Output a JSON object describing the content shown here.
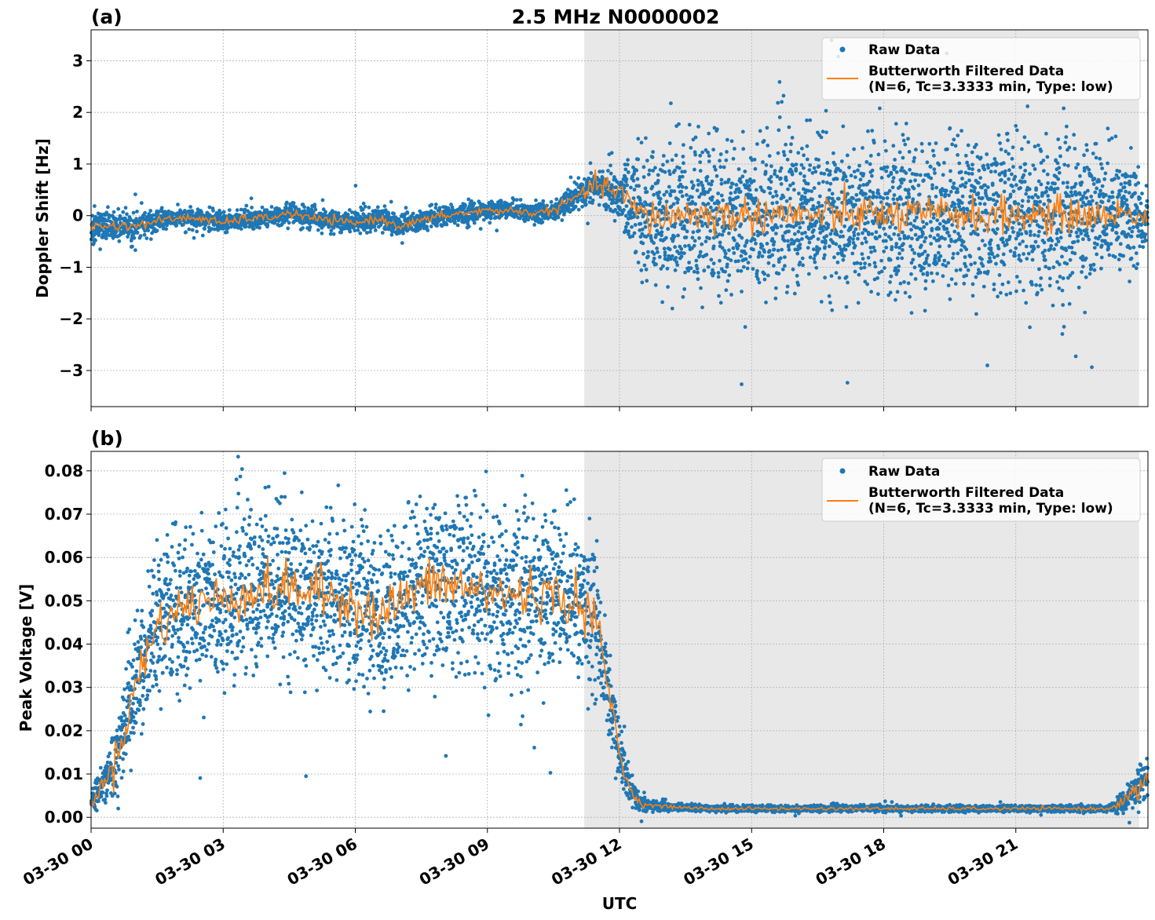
{
  "figure": {
    "title": "2.5 MHz N0000002",
    "xlabel": "UTC"
  },
  "colors": {
    "raw": "#1f77b4",
    "filtered": "#ff7f0e",
    "shade": "#e8e8e8",
    "grid": "#b0b0b0"
  },
  "chart_data": [
    {
      "type": "scatter",
      "panel_label": "(a)",
      "title": "2.5 MHz N0000002",
      "xlabel": "",
      "ylabel": "Doppler Shift [Hz]",
      "x_unit": "hours UTC on 03-30",
      "xlim": [
        0,
        24
      ],
      "ylim": [
        -3.7,
        3.6
      ],
      "xticks": [
        0,
        3,
        6,
        9,
        12,
        15,
        18,
        21
      ],
      "xtick_labels": [],
      "yticks": [
        -3,
        -2,
        -1,
        0,
        1,
        2,
        3
      ],
      "ytick_labels": [
        "−3",
        "−2",
        "−1",
        "0",
        "1",
        "2",
        "3"
      ],
      "grid": true,
      "legend_position": "top-right",
      "shaded_region": [
        11.2,
        23.8
      ],
      "series": [
        {
          "name": "Raw Data",
          "kind": "scatter",
          "x": [
            0,
            0.5,
            1,
            1.5,
            2,
            2.5,
            3,
            3.5,
            4,
            4.5,
            5,
            5.5,
            6,
            6.5,
            7,
            7.5,
            8,
            8.5,
            9,
            9.5,
            10,
            10.5,
            11,
            11.5,
            12,
            12.5,
            13,
            13.5,
            14,
            14.5,
            15,
            15.5,
            16,
            16.5,
            17,
            17.5,
            18,
            18.5,
            19,
            19.5,
            20,
            20.5,
            21,
            21.5,
            22,
            22.5,
            23,
            23.5,
            24
          ],
          "center": [
            -0.25,
            -0.2,
            -0.2,
            -0.1,
            -0.05,
            -0.05,
            -0.15,
            -0.05,
            -0.05,
            0.05,
            -0.05,
            -0.1,
            -0.15,
            -0.05,
            -0.2,
            -0.1,
            0.0,
            0.05,
            0.1,
            0.1,
            0.05,
            0.1,
            0.35,
            0.6,
            0.4,
            0.0,
            -0.05,
            0.05,
            0.0,
            0.0,
            0.0,
            0.05,
            0.0,
            0.0,
            0.0,
            0.05,
            0.0,
            0.0,
            0.0,
            0.05,
            0.0,
            0.0,
            0.0,
            0.0,
            0.0,
            0.0,
            0.0,
            0.05,
            -0.05
          ],
          "spread": [
            0.45,
            0.3,
            0.25,
            0.2,
            0.2,
            0.2,
            0.2,
            0.2,
            0.2,
            0.2,
            0.25,
            0.2,
            0.25,
            0.2,
            0.25,
            0.2,
            0.2,
            0.2,
            0.2,
            0.2,
            0.2,
            0.2,
            0.3,
            0.35,
            0.5,
            1.4,
            1.5,
            1.6,
            1.6,
            1.6,
            1.6,
            1.6,
            1.6,
            1.6,
            1.6,
            1.6,
            1.6,
            1.6,
            1.6,
            1.6,
            1.6,
            1.6,
            1.6,
            1.6,
            1.6,
            1.6,
            1.4,
            1.2,
            0.7
          ]
        },
        {
          "name": "Butterworth Filtered Data\n(N=6, Tc=3.3333 min, Type: low)",
          "kind": "line",
          "x": [
            0,
            0.5,
            1,
            1.5,
            2,
            2.5,
            3,
            3.5,
            4,
            4.5,
            5,
            5.5,
            6,
            6.5,
            7,
            7.5,
            8,
            8.5,
            9,
            9.5,
            10,
            10.5,
            11,
            11.5,
            12,
            12.5,
            13,
            13.5,
            14,
            14.5,
            15,
            15.5,
            16,
            16.5,
            17,
            17.5,
            18,
            18.5,
            19,
            19.5,
            20,
            20.5,
            21,
            21.5,
            22,
            22.5,
            23,
            23.5,
            24
          ],
          "y": [
            -0.2,
            -0.2,
            -0.2,
            -0.1,
            -0.05,
            -0.05,
            -0.15,
            -0.05,
            -0.05,
            0.05,
            -0.05,
            -0.1,
            -0.15,
            -0.05,
            -0.2,
            -0.1,
            0.0,
            0.05,
            0.1,
            0.1,
            0.05,
            0.1,
            0.35,
            0.6,
            0.45,
            0.0,
            -0.05,
            0.05,
            0.0,
            0.0,
            0.0,
            0.05,
            0.0,
            0.0,
            0.0,
            0.05,
            0.0,
            0.0,
            0.0,
            0.05,
            0.0,
            0.0,
            0.0,
            0.0,
            0.0,
            0.0,
            0.0,
            0.05,
            -0.05
          ],
          "noise": [
            0.05,
            0.05,
            0.04,
            0.04,
            0.04,
            0.04,
            0.04,
            0.04,
            0.04,
            0.04,
            0.04,
            0.04,
            0.04,
            0.04,
            0.04,
            0.04,
            0.04,
            0.04,
            0.04,
            0.04,
            0.04,
            0.04,
            0.06,
            0.1,
            0.12,
            0.18,
            0.18,
            0.18,
            0.18,
            0.18,
            0.18,
            0.18,
            0.18,
            0.18,
            0.18,
            0.18,
            0.18,
            0.18,
            0.18,
            0.18,
            0.18,
            0.18,
            0.18,
            0.18,
            0.18,
            0.18,
            0.15,
            0.12,
            0.1
          ]
        }
      ]
    },
    {
      "type": "scatter",
      "panel_label": "(b)",
      "title": "",
      "xlabel": "UTC",
      "ylabel": "Peak Voltage [V]",
      "x_unit": "hours UTC on 03-30",
      "xlim": [
        0,
        24
      ],
      "ylim": [
        -0.0025,
        0.0845
      ],
      "xticks": [
        0,
        3,
        6,
        9,
        12,
        15,
        18,
        21
      ],
      "xtick_labels": [
        "03-30 00",
        "03-30 03",
        "03-30 06",
        "03-30 09",
        "03-30 12",
        "03-30 15",
        "03-30 18",
        "03-30 21"
      ],
      "yticks": [
        0.0,
        0.01,
        0.02,
        0.03,
        0.04,
        0.05,
        0.06,
        0.07,
        0.08
      ],
      "ytick_labels": [
        "0.00",
        "0.01",
        "0.02",
        "0.03",
        "0.04",
        "0.05",
        "0.06",
        "0.07",
        "0.08"
      ],
      "grid": true,
      "legend_position": "top-right",
      "shaded_region": [
        11.2,
        23.8
      ],
      "series": [
        {
          "name": "Raw Data",
          "kind": "scatter",
          "x": [
            0,
            0.25,
            0.5,
            0.75,
            1,
            1.25,
            1.5,
            2,
            2.5,
            3,
            3.5,
            4,
            4.5,
            5,
            5.5,
            6,
            6.5,
            7,
            7.5,
            8,
            8.5,
            9,
            9.5,
            10,
            10.5,
            11,
            11.5,
            11.75,
            12,
            12.25,
            12.5,
            13,
            14,
            15,
            16,
            17,
            18,
            19,
            20,
            21,
            22,
            23,
            23.25,
            23.5,
            23.75,
            24
          ],
          "center": [
            0.004,
            0.007,
            0.012,
            0.02,
            0.03,
            0.038,
            0.045,
            0.048,
            0.05,
            0.05,
            0.052,
            0.052,
            0.053,
            0.052,
            0.051,
            0.05,
            0.047,
            0.05,
            0.053,
            0.054,
            0.053,
            0.052,
            0.051,
            0.052,
            0.051,
            0.05,
            0.045,
            0.03,
            0.015,
            0.006,
            0.003,
            0.0025,
            0.002,
            0.002,
            0.002,
            0.002,
            0.002,
            0.002,
            0.002,
            0.002,
            0.002,
            0.002,
            0.0025,
            0.004,
            0.007,
            0.009
          ],
          "spread": [
            0.003,
            0.005,
            0.008,
            0.012,
            0.014,
            0.016,
            0.018,
            0.02,
            0.02,
            0.02,
            0.02,
            0.021,
            0.021,
            0.021,
            0.02,
            0.02,
            0.02,
            0.021,
            0.021,
            0.022,
            0.021,
            0.021,
            0.021,
            0.021,
            0.021,
            0.02,
            0.018,
            0.012,
            0.008,
            0.004,
            0.002,
            0.001,
            0.0008,
            0.0008,
            0.0008,
            0.0008,
            0.0008,
            0.0008,
            0.0008,
            0.0008,
            0.0008,
            0.0008,
            0.001,
            0.003,
            0.005,
            0.006
          ]
        },
        {
          "name": "Butterworth Filtered Data\n(N=6, Tc=3.3333 min, Type: low)",
          "kind": "line",
          "x": [
            0,
            0.25,
            0.5,
            0.75,
            1,
            1.25,
            1.5,
            2,
            2.5,
            3,
            3.5,
            4,
            4.5,
            5,
            5.5,
            6,
            6.5,
            7,
            7.5,
            8,
            8.5,
            9,
            9.5,
            10,
            10.5,
            11,
            11.5,
            11.75,
            12,
            12.25,
            12.5,
            13,
            14,
            15,
            16,
            17,
            18,
            19,
            20,
            21,
            22,
            23,
            23.25,
            23.5,
            23.75,
            24
          ],
          "y": [
            0.004,
            0.007,
            0.012,
            0.02,
            0.03,
            0.038,
            0.044,
            0.048,
            0.05,
            0.05,
            0.052,
            0.052,
            0.053,
            0.052,
            0.051,
            0.05,
            0.046,
            0.05,
            0.053,
            0.054,
            0.053,
            0.052,
            0.051,
            0.052,
            0.051,
            0.05,
            0.044,
            0.03,
            0.015,
            0.006,
            0.003,
            0.0025,
            0.002,
            0.002,
            0.002,
            0.002,
            0.002,
            0.002,
            0.002,
            0.002,
            0.002,
            0.002,
            0.0025,
            0.004,
            0.006,
            0.008
          ],
          "noise": [
            0.001,
            0.001,
            0.002,
            0.002,
            0.003,
            0.003,
            0.003,
            0.003,
            0.003,
            0.003,
            0.003,
            0.003,
            0.003,
            0.003,
            0.003,
            0.003,
            0.003,
            0.003,
            0.003,
            0.003,
            0.003,
            0.003,
            0.003,
            0.003,
            0.003,
            0.003,
            0.003,
            0.002,
            0.001,
            0.0005,
            0.0003,
            0.0002,
            0.0002,
            0.0002,
            0.0002,
            0.0002,
            0.0002,
            0.0002,
            0.0002,
            0.0002,
            0.0002,
            0.0002,
            0.0003,
            0.001,
            0.0015,
            0.0015
          ]
        }
      ]
    }
  ]
}
